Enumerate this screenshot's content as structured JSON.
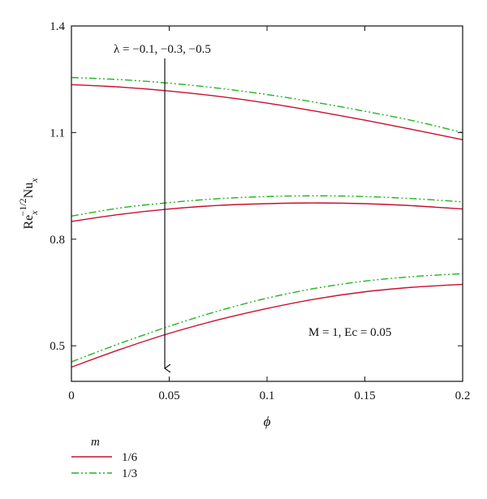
{
  "chart_data": {
    "type": "line",
    "xlabel": "ϕ",
    "ylabel_main": "Re",
    "ylabel_sub1": "x",
    "ylabel_sup": "−1/2",
    "ylabel_main2": "Nu",
    "ylabel_sub2": "x",
    "xlim": [
      0,
      0.2
    ],
    "ylim": [
      0.4,
      1.4
    ],
    "xticks": [
      0,
      0.05,
      0.1,
      0.15,
      0.2
    ],
    "xtick_labels": [
      "0",
      "0.05",
      "0.1",
      "0.15",
      "0.2"
    ],
    "yticks": [
      0.5,
      0.8,
      1.1,
      1.4
    ],
    "ytick_labels": [
      "0.5",
      "0.8",
      "1.1",
      "1.4"
    ],
    "grid": false,
    "annotations": {
      "lambda_text": "λ = −0.1, −0.3, −0.5",
      "params_text": "M = 1, Ec = 0.05"
    },
    "legend": {
      "title": "m",
      "placement": "bottom-left-below-axes",
      "entries": [
        {
          "label": "1/6",
          "color": "#c8102e",
          "dash": "solid"
        },
        {
          "label": "1/3",
          "color": "#22b422",
          "dash": "dash-dot-dot"
        }
      ]
    },
    "x": [
      0,
      0.025,
      0.05,
      0.075,
      0.1,
      0.125,
      0.15,
      0.175,
      0.2
    ],
    "series": [
      {
        "name": "1/6",
        "lambda": -0.1,
        "color": "#c8102e",
        "dash": "solid",
        "values": [
          1.235,
          1.228,
          1.217,
          1.202,
          1.183,
          1.16,
          1.135,
          1.108,
          1.08
        ]
      },
      {
        "name": "1/3",
        "lambda": -0.1,
        "color": "#22b422",
        "dash": "dash-dot-dot",
        "values": [
          1.255,
          1.249,
          1.239,
          1.225,
          1.207,
          1.185,
          1.16,
          1.133,
          1.1
        ]
      },
      {
        "name": "1/6",
        "lambda": -0.3,
        "color": "#c8102e",
        "dash": "solid",
        "values": [
          0.85,
          0.87,
          0.885,
          0.895,
          0.9,
          0.902,
          0.9,
          0.894,
          0.885
        ]
      },
      {
        "name": "1/3",
        "lambda": -0.3,
        "color": "#22b422",
        "dash": "dash-dot-dot",
        "values": [
          0.865,
          0.888,
          0.903,
          0.914,
          0.92,
          0.922,
          0.92,
          0.914,
          0.905
        ]
      },
      {
        "name": "1/6",
        "lambda": -0.5,
        "color": "#c8102e",
        "dash": "solid",
        "values": [
          0.44,
          0.49,
          0.535,
          0.573,
          0.605,
          0.632,
          0.652,
          0.665,
          0.673
        ]
      },
      {
        "name": "1/3",
        "lambda": -0.5,
        "color": "#22b422",
        "dash": "dash-dot-dot",
        "values": [
          0.455,
          0.507,
          0.555,
          0.598,
          0.634,
          0.662,
          0.682,
          0.695,
          0.703
        ]
      }
    ]
  }
}
